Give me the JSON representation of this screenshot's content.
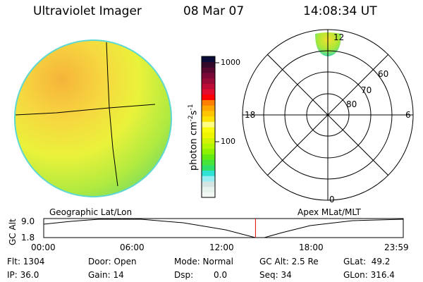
{
  "header": {
    "instrument": "Ultraviolet Imager",
    "date": "08 Mar 07",
    "time": "14:08:34 UT"
  },
  "colorbar": {
    "label": "photon cm",
    "exp1": "-2",
    "unit2": "s",
    "exp2": "-1",
    "ticks": [
      "1000",
      "100"
    ],
    "colors": [
      "#f4f8f4",
      "#e6f2ee",
      "#d4e4e4",
      "#96eef2",
      "#2ee2d6",
      "#2ee06a",
      "#46e43a",
      "#60ec12",
      "#8cf202",
      "#b2f604",
      "#d2f404",
      "#eef604",
      "#fafa0c",
      "#fefe84",
      "#fee202",
      "#fec602",
      "#fea602",
      "#fe8002",
      "#fe0202",
      "#e20c2e",
      "#be0a36",
      "#9a0a36",
      "#7a0836",
      "#560830",
      "#340a28",
      "#0c0c3a"
    ]
  },
  "polar": {
    "labels": {
      "noon": "12",
      "dusk": "18",
      "dawn": "6",
      "midnight": "0"
    },
    "lat_labels": [
      "60",
      "70",
      "80"
    ]
  },
  "timeline": {
    "left_title": "Geographic Lat/Lon",
    "right_title": "Apex MLat/MLT",
    "ylabel": "GC Alt",
    "ymax": "9.0",
    "ymin": "1.8",
    "ticks": [
      "00:00",
      "06:00",
      "12:00",
      "18:00",
      "23:59"
    ],
    "current_fraction": 0.589
  },
  "status": {
    "flt": "Flt: 1304",
    "ip": "IP: 36.0",
    "door": "Door: Open",
    "gain": "Gain: 14",
    "mode": "Mode: Normal",
    "dsp_label": "Dsp:",
    "dsp_value": "0.0",
    "gcalt": "GC Alt: 2.5 Re",
    "seq": "Seq: 34",
    "glat": "GLat:  49.2",
    "glon": "GLon: 316.4"
  }
}
